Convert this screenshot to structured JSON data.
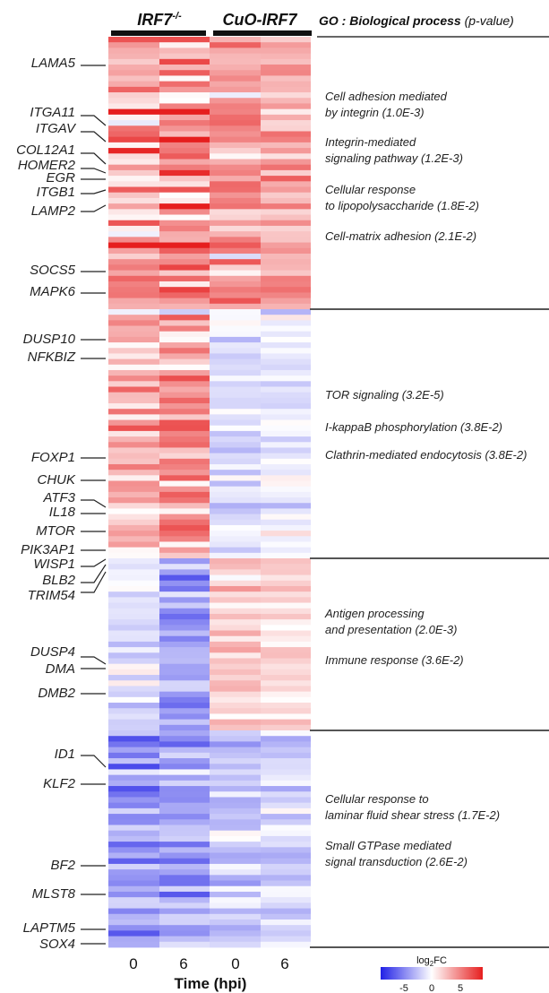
{
  "chart_data": {
    "type": "heatmap",
    "groups": [
      {
        "label": "IRF7",
        "superscript": "-/-",
        "columns": [
          "0",
          "6"
        ]
      },
      {
        "label": "CuO-IRF7",
        "columns": [
          "0",
          "6"
        ]
      }
    ],
    "xlabel": "Time (hpi)",
    "go_header": {
      "bold": "GO : Biological process",
      "normal": " (p-value)"
    },
    "colorbar": {
      "label": "log2FC",
      "ticks": [
        "-5",
        "0",
        "5"
      ],
      "range": [
        -6,
        6
      ],
      "colors": [
        "#2020e6",
        "#ffffff",
        "#e61e1e"
      ]
    },
    "clusters": [
      {
        "name": "cluster-1",
        "profile": [
          [
            3.0,
            2.2
          ],
          [
            3.4,
            2.6
          ],
          [
            2.6,
            1.6
          ],
          [
            2.4,
            1.2
          ]
        ],
        "genes": [
          "LAMA5",
          "ITGA11",
          "ITGAV",
          "COL12A1",
          "HOMER2",
          "EGR",
          "ITGB1",
          "LAMP2",
          "SOCS5",
          "MAPK6"
        ],
        "go_terms": [
          [
            "Cell adhesion mediated",
            "by integrin (1.0E-3)"
          ],
          [
            "Integrin-mediated",
            "signaling pathway (1.2E-3)"
          ],
          [
            "Cellular response",
            "to lipopolysaccharide (1.8E-2)"
          ],
          [
            "Cell-matrix adhesion (2.1E-2)"
          ]
        ]
      },
      {
        "name": "cluster-2",
        "profile": [
          [
            1.8,
            1.4
          ],
          [
            2.6,
            1.8
          ],
          [
            -1.0,
            0.8
          ],
          [
            -0.6,
            0.8
          ]
        ],
        "genes": [
          "DUSP10",
          "NFKBIZ",
          "FOXP1",
          "CHUK",
          "ATF3",
          "IL18",
          "MTOR",
          "PIK3AP1"
        ],
        "go_terms": [
          [
            "TOR signaling (3.2E-5)"
          ],
          [
            "I-kappaB phosphorylation (3.8E-2)"
          ],
          [
            "Clathrin-mediated endocytosis (3.8E-2)"
          ]
        ]
      },
      {
        "name": "cluster-3",
        "profile": [
          [
            -0.8,
            1.0
          ],
          [
            -2.4,
            1.4
          ],
          [
            1.4,
            1.0
          ],
          [
            1.0,
            1.0
          ]
        ],
        "genes": [
          "WISP1",
          "BLB2",
          "TRIM54",
          "DUSP4",
          "DMA",
          "DMB2"
        ],
        "go_terms": [
          [
            "Antigen processing",
            "and presentation (2.0E-3)"
          ],
          [
            "Immune response (3.6E-2)"
          ]
        ]
      },
      {
        "name": "cluster-4",
        "profile": [
          [
            -2.6,
            1.4
          ],
          [
            -2.4,
            1.4
          ],
          [
            -1.6,
            1.0
          ],
          [
            -1.4,
            1.0
          ]
        ],
        "genes": [
          "ID1",
          "KLF2",
          "BF2",
          "MLST8",
          "LAPTM5",
          "SOX4"
        ],
        "go_terms": [
          [
            "Cellular response to",
            "laminar fluid shear stress (1.7E-2)"
          ],
          [
            "Small GTPase mediated",
            "signal transduction (2.6E-2)"
          ]
        ]
      }
    ]
  }
}
